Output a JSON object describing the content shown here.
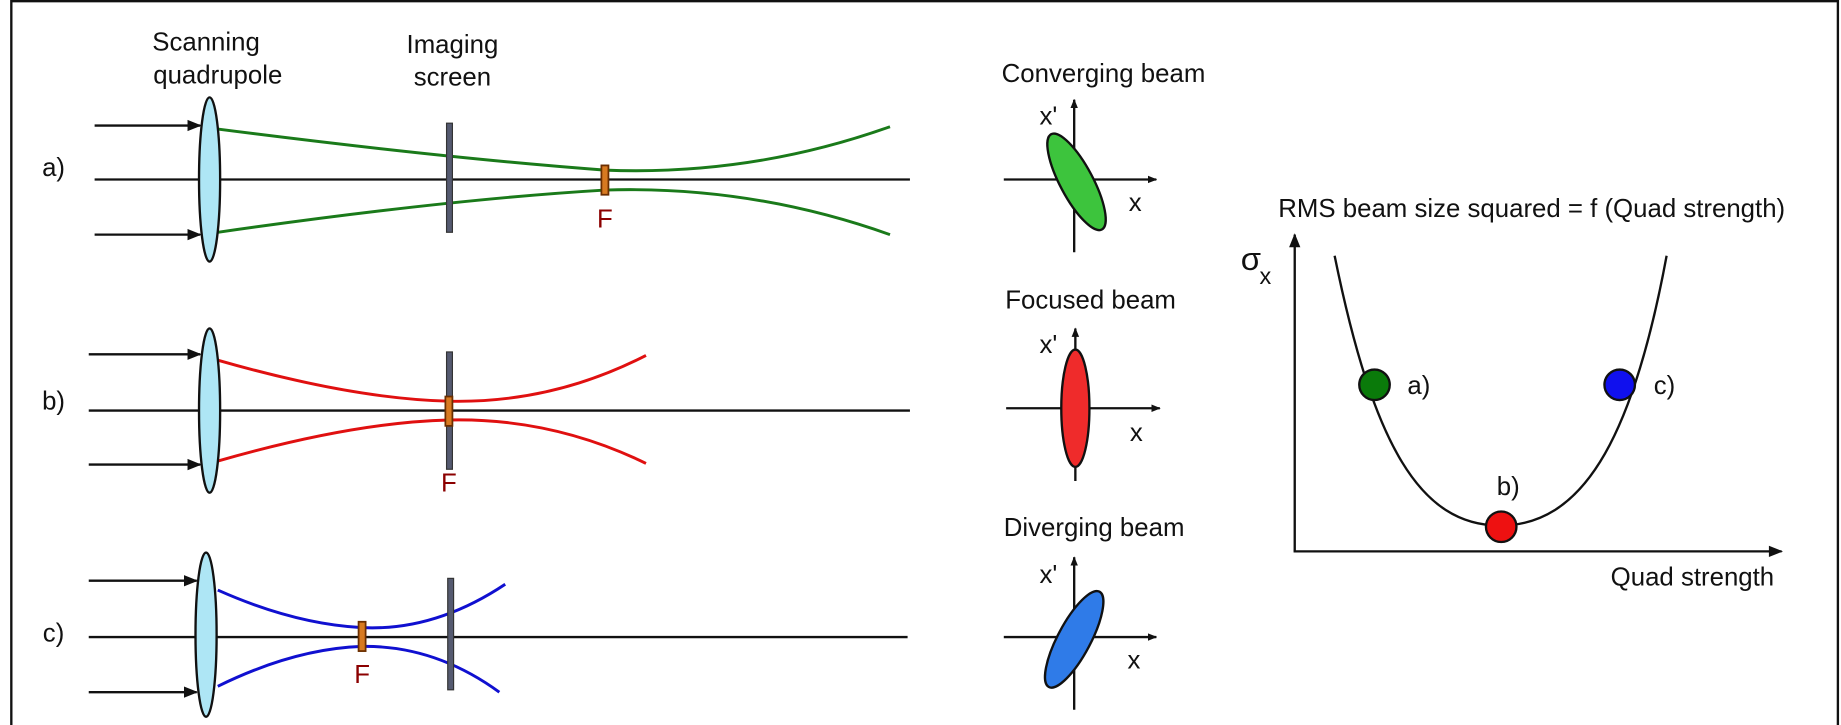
{
  "header": {
    "quadrupole_label": [
      "Scanning",
      "quadrupole"
    ],
    "screen_label": [
      "Imaging",
      "screen"
    ]
  },
  "rows": [
    {
      "label": "a)",
      "focus": "F",
      "phase_title": "Converging beam"
    },
    {
      "label": "b)",
      "focus": "F",
      "phase_title": "Focused beam"
    },
    {
      "label": "c)",
      "focus": "F",
      "phase_title": "Diverging beam"
    }
  ],
  "phase_axes": {
    "x": "x",
    "xp": "x'"
  },
  "plot": {
    "title": "RMS beam size squared = f (Quad strength)",
    "y_label": "σ",
    "y_sub": "x",
    "x_label": "Quad strength",
    "points": [
      "a)",
      "b)",
      "c)"
    ]
  }
}
